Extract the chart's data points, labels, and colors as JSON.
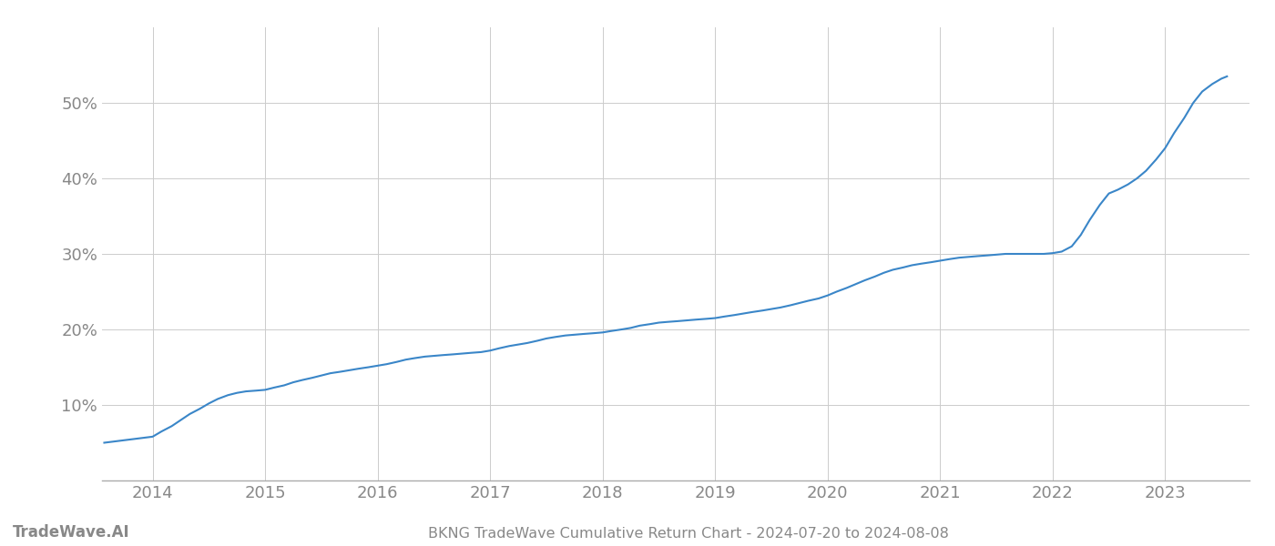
{
  "title": "BKNG TradeWave Cumulative Return Chart - 2024-07-20 to 2024-08-08",
  "watermark": "TradeWave.AI",
  "line_color": "#3a86c8",
  "background_color": "#ffffff",
  "grid_color": "#cccccc",
  "x_values": [
    2013.57,
    2014.0,
    2014.08,
    2014.17,
    2014.25,
    2014.33,
    2014.42,
    2014.5,
    2014.58,
    2014.67,
    2014.75,
    2014.83,
    2014.92,
    2015.0,
    2015.08,
    2015.17,
    2015.25,
    2015.33,
    2015.42,
    2015.5,
    2015.58,
    2015.67,
    2015.75,
    2015.83,
    2015.92,
    2016.0,
    2016.08,
    2016.17,
    2016.25,
    2016.33,
    2016.42,
    2016.5,
    2016.58,
    2016.67,
    2016.75,
    2016.83,
    2016.92,
    2017.0,
    2017.08,
    2017.17,
    2017.25,
    2017.33,
    2017.42,
    2017.5,
    2017.58,
    2017.67,
    2017.75,
    2017.83,
    2017.92,
    2018.0,
    2018.08,
    2018.17,
    2018.25,
    2018.33,
    2018.42,
    2018.5,
    2018.58,
    2018.67,
    2018.75,
    2018.83,
    2018.92,
    2019.0,
    2019.08,
    2019.17,
    2019.25,
    2019.33,
    2019.42,
    2019.5,
    2019.58,
    2019.67,
    2019.75,
    2019.83,
    2019.92,
    2020.0,
    2020.08,
    2020.17,
    2020.25,
    2020.33,
    2020.42,
    2020.5,
    2020.58,
    2020.67,
    2020.75,
    2020.83,
    2020.92,
    2021.0,
    2021.08,
    2021.17,
    2021.25,
    2021.33,
    2021.42,
    2021.5,
    2021.58,
    2021.67,
    2021.75,
    2021.83,
    2021.92,
    2022.0,
    2022.08,
    2022.17,
    2022.25,
    2022.33,
    2022.42,
    2022.5,
    2022.58,
    2022.67,
    2022.75,
    2022.83,
    2022.92,
    2023.0,
    2023.08,
    2023.17,
    2023.25,
    2023.33,
    2023.42,
    2023.5,
    2023.55
  ],
  "y_values": [
    5.0,
    5.8,
    6.5,
    7.2,
    8.0,
    8.8,
    9.5,
    10.2,
    10.8,
    11.3,
    11.6,
    11.8,
    11.9,
    12.0,
    12.3,
    12.6,
    13.0,
    13.3,
    13.6,
    13.9,
    14.2,
    14.4,
    14.6,
    14.8,
    15.0,
    15.2,
    15.4,
    15.7,
    16.0,
    16.2,
    16.4,
    16.5,
    16.6,
    16.7,
    16.8,
    16.9,
    17.0,
    17.2,
    17.5,
    17.8,
    18.0,
    18.2,
    18.5,
    18.8,
    19.0,
    19.2,
    19.3,
    19.4,
    19.5,
    19.6,
    19.8,
    20.0,
    20.2,
    20.5,
    20.7,
    20.9,
    21.0,
    21.1,
    21.2,
    21.3,
    21.4,
    21.5,
    21.7,
    21.9,
    22.1,
    22.3,
    22.5,
    22.7,
    22.9,
    23.2,
    23.5,
    23.8,
    24.1,
    24.5,
    25.0,
    25.5,
    26.0,
    26.5,
    27.0,
    27.5,
    27.9,
    28.2,
    28.5,
    28.7,
    28.9,
    29.1,
    29.3,
    29.5,
    29.6,
    29.7,
    29.8,
    29.9,
    30.0,
    30.0,
    30.0,
    30.0,
    30.0,
    30.1,
    30.3,
    31.0,
    32.5,
    34.5,
    36.5,
    38.0,
    38.5,
    39.2,
    40.0,
    41.0,
    42.5,
    44.0,
    46.0,
    48.0,
    50.0,
    51.5,
    52.5,
    53.2,
    53.5
  ],
  "xlim": [
    2013.55,
    2023.75
  ],
  "ylim": [
    0,
    60
  ],
  "yticks": [
    10,
    20,
    30,
    40,
    50
  ],
  "xticks": [
    2014,
    2015,
    2016,
    2017,
    2018,
    2019,
    2020,
    2021,
    2022,
    2023
  ],
  "tick_label_color": "#888888",
  "axis_label_fontsize": 13,
  "title_fontsize": 11.5,
  "watermark_fontsize": 12
}
